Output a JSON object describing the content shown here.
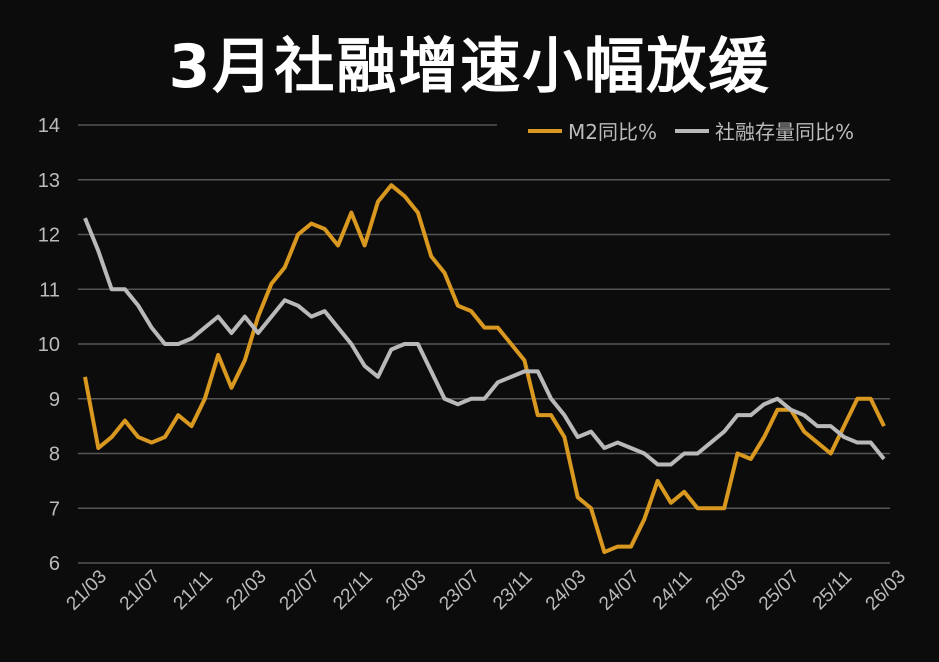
{
  "title": "3月社融增速小幅放缓",
  "chart_data": {
    "type": "line",
    "title": "3月社融增速小幅放缓",
    "ylim": [
      6,
      14
    ],
    "yticks": [
      6,
      7,
      8,
      9,
      10,
      11,
      12,
      13,
      14
    ],
    "grid": true,
    "legend_position": "top-right",
    "xtick_labels": [
      "21/03",
      "21/07",
      "21/11",
      "22/03",
      "22/07",
      "22/11",
      "23/03",
      "23/07",
      "23/11",
      "24/03",
      "24/07",
      "24/11",
      "25/03",
      "25/07",
      "25/11",
      "26/03"
    ],
    "x_start": "21/03",
    "x_end": "26/03",
    "x_step": "month",
    "series": [
      {
        "name": "M2同比%",
        "color": "#d9981f",
        "values": [
          9.4,
          8.1,
          8.3,
          8.6,
          8.3,
          8.2,
          8.3,
          8.7,
          8.5,
          9.0,
          9.8,
          9.2,
          9.7,
          10.5,
          11.1,
          11.4,
          12.0,
          12.2,
          12.1,
          11.8,
          12.4,
          11.8,
          12.6,
          12.9,
          12.7,
          12.4,
          11.6,
          11.3,
          10.7,
          10.6,
          10.3,
          10.3,
          10.0,
          9.7,
          8.7,
          8.7,
          8.3,
          7.2,
          7.0,
          6.2,
          6.3,
          6.3,
          6.8,
          7.5,
          7.1,
          7.3,
          7.0,
          7.0,
          7.0,
          8.0,
          7.9,
          8.3,
          8.8,
          8.8,
          8.4,
          8.2,
          8.0,
          8.5,
          9.0,
          9.0,
          8.5
        ]
      },
      {
        "name": "社融存量同比%",
        "color": "#b9b9b9",
        "values": [
          12.3,
          11.7,
          11.0,
          11.0,
          10.7,
          10.3,
          10.0,
          10.0,
          10.1,
          10.3,
          10.5,
          10.2,
          10.5,
          10.2,
          10.5,
          10.8,
          10.7,
          10.5,
          10.6,
          10.3,
          10.0,
          9.6,
          9.4,
          9.9,
          10.0,
          10.0,
          9.5,
          9.0,
          8.9,
          9.0,
          9.0,
          9.3,
          9.4,
          9.5,
          9.5,
          9.0,
          8.7,
          8.3,
          8.4,
          8.1,
          8.2,
          8.1,
          8.0,
          7.8,
          7.8,
          8.0,
          8.0,
          8.2,
          8.4,
          8.7,
          8.7,
          8.9,
          9.0,
          8.8,
          8.7,
          8.5,
          8.5,
          8.3,
          8.2,
          8.2,
          7.9
        ]
      }
    ]
  }
}
